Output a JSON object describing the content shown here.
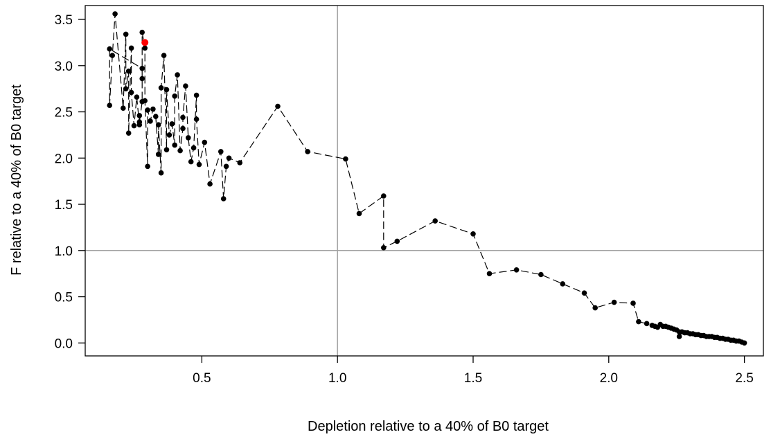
{
  "chart_data": {
    "type": "scatter",
    "title": "",
    "xlabel": "Depletion relative to a 40% of B0 target",
    "ylabel": "F relative to a 40% of B0 target",
    "xlim": [
      0.07,
      2.57
    ],
    "ylim": [
      -0.14,
      3.65
    ],
    "xticks": [
      0.5,
      1.0,
      1.5,
      2.0,
      2.5
    ],
    "xtick_labels": [
      "0.5",
      "1.0",
      "1.5",
      "2.0",
      "2.5"
    ],
    "yticks": [
      0.0,
      0.5,
      1.0,
      1.5,
      2.0,
      2.5,
      3.0,
      3.5
    ],
    "ytick_labels": [
      "0.0",
      "0.5",
      "1.0",
      "1.5",
      "2.0",
      "2.5",
      "3.0",
      "3.5"
    ],
    "reference_lines": {
      "x": 1.0,
      "y": 1.0,
      "color": "#a0a0a0"
    },
    "grid": false,
    "line_style": "dashed",
    "colors": {
      "points": "#000000",
      "highlight": "#ff0000",
      "reference": "#a0a0a0"
    },
    "series": [
      {
        "x": [
          2.5,
          2.49,
          2.48,
          2.47,
          2.46,
          2.45,
          2.44,
          2.43,
          2.42,
          2.41,
          2.4,
          2.39,
          2.38,
          2.37,
          2.36,
          2.35,
          2.34,
          2.33,
          2.32,
          2.31,
          2.3,
          2.29,
          2.28,
          2.27,
          2.26,
          2.26,
          2.25,
          2.24,
          2.23,
          2.22,
          2.21,
          2.2,
          2.19,
          2.18,
          2.17,
          2.16,
          2.14,
          2.11,
          2.09,
          2.02,
          1.95,
          1.91,
          1.83,
          1.75,
          1.66,
          1.56,
          1.5,
          1.36,
          1.22,
          1.17,
          1.17,
          1.08,
          1.03,
          0.89,
          0.78,
          0.64,
          0.6,
          0.59,
          0.58,
          0.57,
          0.53,
          0.51,
          0.49,
          0.48,
          0.48,
          0.47,
          0.46,
          0.45,
          0.44,
          0.43,
          0.43,
          0.42,
          0.41,
          0.4,
          0.4,
          0.39,
          0.38,
          0.37,
          0.37,
          0.36,
          0.35,
          0.35,
          0.34,
          0.34,
          0.33,
          0.32,
          0.31,
          0.3,
          0.3,
          0.29,
          0.29,
          0.28,
          0.28,
          0.28,
          0.27,
          0.27,
          0.27,
          0.26,
          0.25,
          0.24,
          0.24,
          0.23,
          0.23,
          0.22,
          0.22,
          0.21,
          0.18,
          0.17,
          0.16,
          0.16,
          0.28
        ],
        "y": [
          0.0,
          0.01,
          0.02,
          0.02,
          0.03,
          0.03,
          0.04,
          0.04,
          0.05,
          0.05,
          0.06,
          0.06,
          0.07,
          0.07,
          0.07,
          0.08,
          0.08,
          0.09,
          0.09,
          0.1,
          0.1,
          0.11,
          0.11,
          0.12,
          0.07,
          0.12,
          0.14,
          0.15,
          0.16,
          0.17,
          0.18,
          0.18,
          0.2,
          0.17,
          0.18,
          0.19,
          0.21,
          0.23,
          0.43,
          0.44,
          0.38,
          0.54,
          0.64,
          0.74,
          0.79,
          0.75,
          1.18,
          1.32,
          1.1,
          1.03,
          1.59,
          1.4,
          1.99,
          2.07,
          2.56,
          1.95,
          2.0,
          1.91,
          1.56,
          2.07,
          1.72,
          2.17,
          1.93,
          2.42,
          2.68,
          2.11,
          1.96,
          2.22,
          2.78,
          2.44,
          2.32,
          2.08,
          2.9,
          2.67,
          2.14,
          2.37,
          2.25,
          2.74,
          2.09,
          3.11,
          2.76,
          1.84,
          2.36,
          2.04,
          2.45,
          2.53,
          2.4,
          2.52,
          1.91,
          2.62,
          3.19,
          3.36,
          2.86,
          2.61,
          2.39,
          2.46,
          2.36,
          2.66,
          2.35,
          2.71,
          3.19,
          2.27,
          2.94,
          2.75,
          3.34,
          2.54,
          3.56,
          3.11,
          2.57,
          3.18,
          2.97
        ],
        "highlight": {
          "x": 0.29,
          "y": 3.25
        }
      }
    ]
  }
}
